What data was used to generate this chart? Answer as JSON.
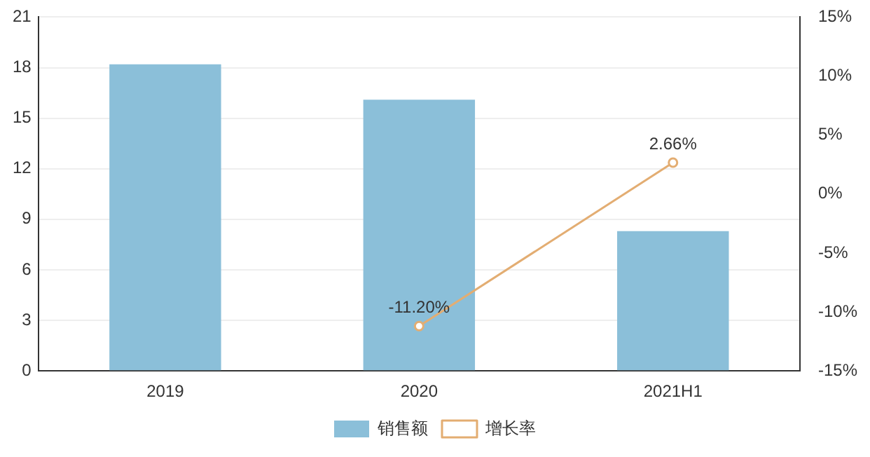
{
  "chart_data": {
    "type": "bar",
    "categories": [
      "2019",
      "2020",
      "2021H1"
    ],
    "series": [
      {
        "name": "销售额",
        "color": "#8bbfd9",
        "values": [
          18.2,
          16.1,
          8.3
        ]
      },
      {
        "name": "增长率",
        "type": "line",
        "axis": "y2",
        "color": "#e3ad72",
        "values": [
          null,
          -11.2,
          2.66
        ],
        "value_labels": [
          null,
          "-11.20%",
          "2.66%"
        ]
      }
    ],
    "ylim": [
      0,
      21
    ],
    "yticks": [
      0,
      3,
      6,
      9,
      12,
      15,
      18,
      21
    ],
    "y2lim": [
      -15,
      15
    ],
    "y2ticks": [
      {
        "value": -15,
        "label": "-15%"
      },
      {
        "value": -10,
        "label": "-10%"
      },
      {
        "value": -5,
        "label": "-5%"
      },
      {
        "value": 0,
        "label": "0%"
      },
      {
        "value": 5,
        "label": "5%"
      },
      {
        "value": 10,
        "label": "10%"
      },
      {
        "value": 15,
        "label": "15%"
      }
    ],
    "grid": "y",
    "legend": "bottom",
    "marker": "circle",
    "line_style": "solid"
  }
}
